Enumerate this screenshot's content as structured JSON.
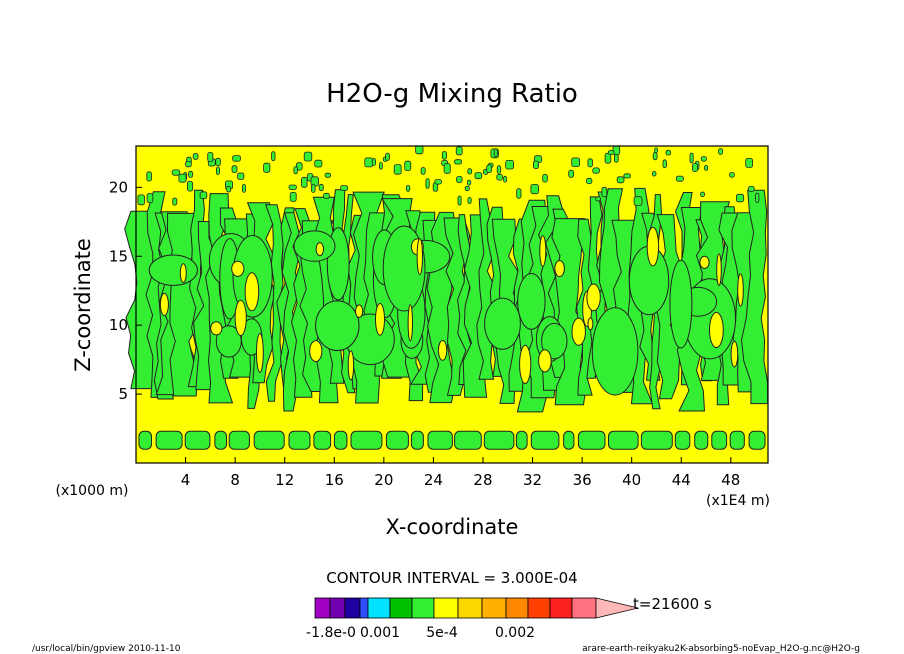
{
  "chart_data": {
    "type": "heatmap",
    "title": "H2O-g Mixing Ratio",
    "xlabel": "X-coordinate",
    "ylabel": "Z-coordinate",
    "x_unit": "(x1E4 m)",
    "y_unit": "(x1000 m)",
    "xlim": [
      0,
      51
    ],
    "ylim": [
      0,
      23
    ],
    "x_ticks": [
      "4",
      "8",
      "12",
      "16",
      "20",
      "24",
      "28",
      "32",
      "36",
      "40",
      "44",
      "48"
    ],
    "y_ticks": [
      "5",
      "10",
      "15",
      "20"
    ],
    "contour_interval": "CONTOUR INTERVAL = 3.000E-04",
    "time_label": "t=21600 s",
    "colorbar_labels": [
      "-1.8e-0",
      "0.001",
      "5e-4",
      "0.002"
    ],
    "colorbar_colors": [
      "#a000c0",
      "#7000b0",
      "#2000a0",
      "#3050ff",
      "#00e0ff",
      "#00c000",
      "#33ee33",
      "#ffff00",
      "#ffd700",
      "#ffb000",
      "#ff8800",
      "#ff4000",
      "#ff2020",
      "#ff7080",
      "#ffb8b8"
    ],
    "field_colors": {
      "background": "#ffff00",
      "moist": "#33ee33",
      "low_band": "#33ee33",
      "contour": "#222222"
    }
  },
  "footer": {
    "program": "/usr/local/bin/gpview  2010-11-10",
    "source": "arare-earth-reikyaku2K-absorbing5-noEvap_H2O-g.nc@H2O-g"
  }
}
